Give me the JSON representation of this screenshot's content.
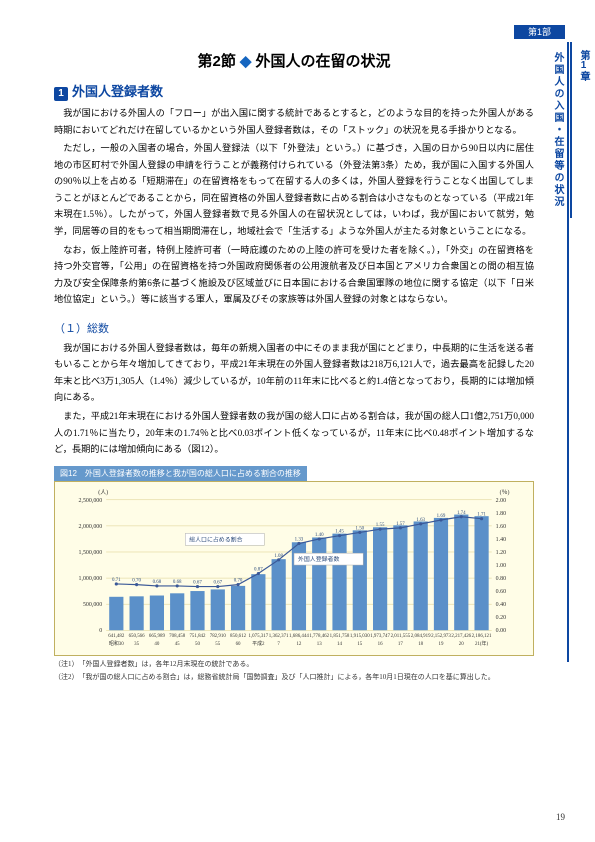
{
  "header": {
    "part": "第1部"
  },
  "side": {
    "chapter": "第1章",
    "title": "外国人の入国・在留等の状況"
  },
  "section_title": {
    "prefix": "第2節",
    "text": "外国人の在留の状況"
  },
  "h1": {
    "num": "1",
    "text": "外国人登録者数"
  },
  "paras": [
    "我が国における外国人の「フロー」が出入国に関する統計であるとすると，どのような目的を持った外国人がある時期においてどれだけ在留しているかという外国人登録者数は，その「ストック」の状況を見る手掛かりとなる。",
    "ただし，一般の入国者の場合，外国人登録法（以下「外登法」という。）に基づき，入国の日から90日以内に居住地の市区町村で外国人登録の申請を行うことが義務付けられている（外登法第3条）ため，我が国に入国する外国人の90％以上を占める「短期滞在」の在留資格をもって在留する人の多くは，外国人登録を行うことなく出国してしまうことがほとんどであることから，同在留資格の外国人登録者数に占める割合は小さなものとなっている（平成21年末現在1.5％）。したがって，外国人登録者数で見る外国人の在留状況としては，いわば，我が国において就労，勉学，同居等の目的をもって相当期間滞在し，地域社会で「生活する」ような外国人が主たる対象ということになる。",
    "なお，仮上陸許可者，特例上陸許可者（一時庇護のための上陸の許可を受けた者を除く。），「外交」の在留資格を持つ外交官等，「公用」の在留資格を持つ外国政府関係者の公用渡航者及び日本国とアメリカ合衆国との間の相互協力及び安全保障条約第6条に基づく施設及び区域並びに日本国における合衆国軍隊の地位に関する協定（以下「日米地位協定」という。）等に該当する軍人，軍属及びその家族等は外国人登録の対象とはならない。"
  ],
  "subsection": "（１）総数",
  "paras2": [
    "我が国における外国人登録者数は，毎年の新規入国者の中にそのまま我が国にとどまり，中長期的に生活を送る者もいることから年々増加してきており，平成21年末現在の外国人登録者数は218万6,121人で，過去最高を記録した20年末と比べ3万1,305人（1.4％）減少しているが，10年前の11年末に比べると約1.4倍となっており，長期的には増加傾向にある。",
    "また，平成21年末現在における外国人登録者数の我が国の総人口に占める割合は，我が国の総人口1億2,751万0,000人の1.71％に当たり，20年末の1.74％と比べ0.03ポイント低くなっているが，11年末に比べ0.48ポイント増加するなど，長期的には増加傾向にある（図12）。"
  ],
  "chart": {
    "caption": "図12　外国人登録者数の推移と我が国の総人口に占める割合の推移",
    "y_left_unit": "(人)",
    "y_right_unit": "(％)",
    "y_left_ticks": [
      "2,500,000",
      "2,000,000",
      "1,500,000",
      "1,000,000",
      "500,000",
      "0"
    ],
    "y_right_ticks": [
      "2.00",
      "1.80",
      "1.60",
      "1.40",
      "1.20",
      "1.00",
      "0.80",
      "0.60",
      "0.40",
      "0.20",
      "0.00"
    ],
    "x_labels": [
      "昭和30",
      "35",
      "40",
      "45",
      "50",
      "55",
      "60",
      "平成2",
      "7",
      "12",
      "13",
      "14",
      "15",
      "16",
      "17",
      "18",
      "19",
      "20",
      "21(年)"
    ],
    "legend": {
      "line": "総人口に占める割合",
      "bar": "外国人登録者数"
    },
    "bars": [
      641482,
      650566,
      665989,
      708458,
      751842,
      782910,
      850612,
      1075317,
      1362371,
      1686444,
      1778462,
      1851758,
      1915030,
      1973747,
      2011555,
      2084919,
      2152973,
      2217426,
      2186121
    ],
    "bar_vals": [
      "641,482",
      "650,566",
      "665,989",
      "708,458",
      "751,842",
      "782,910",
      "850,612",
      "1,075,317",
      "1,362,371",
      "1,686,444",
      "1,778,462",
      "1,851,758",
      "1,915,030",
      "1,973,747",
      "2,011,555",
      "2,084,919",
      "2,152,973",
      "2,217,426",
      "2,186,121"
    ],
    "bar_labels_top": [
      "",
      "",
      "",
      "",
      "",
      "",
      "",
      "",
      "",
      "",
      "",
      "1.45",
      "1.50",
      "1.55",
      "1.57",
      "1.63",
      "1.69",
      "1.74",
      "1.71"
    ],
    "line_pts": [
      0.71,
      0.7,
      0.68,
      0.68,
      0.67,
      0.67,
      0.7,
      0.87,
      1.08,
      1.33,
      1.4,
      1.45,
      1.5,
      1.55,
      1.57,
      1.63,
      1.69,
      1.74,
      1.71
    ],
    "line_labels": [
      "0.71",
      "0.70",
      "0.68",
      "0.68",
      "0.67",
      "0.67",
      "0.70",
      "0.87",
      "1.08",
      "1.33",
      "1.40",
      "1.45",
      "1.50",
      "1.55",
      "1.57",
      "1.63",
      "1.69",
      "1.74",
      "1.71"
    ],
    "bg": "#fffde7",
    "bar_color": "#5b90c9",
    "line_color": "#3a5897",
    "y_left_max": 2500000,
    "y_right_max": 2.0
  },
  "notes": [
    "（注1）　「外国人登録者数」は，各年12月末現在の統計である。",
    "（注2）　「我が国の総人口に占める割合」は，総務省統計局「国勢調査」及び「人口推計」による，各年10月1日現在の人口を基に算出した。"
  ],
  "page": "19"
}
